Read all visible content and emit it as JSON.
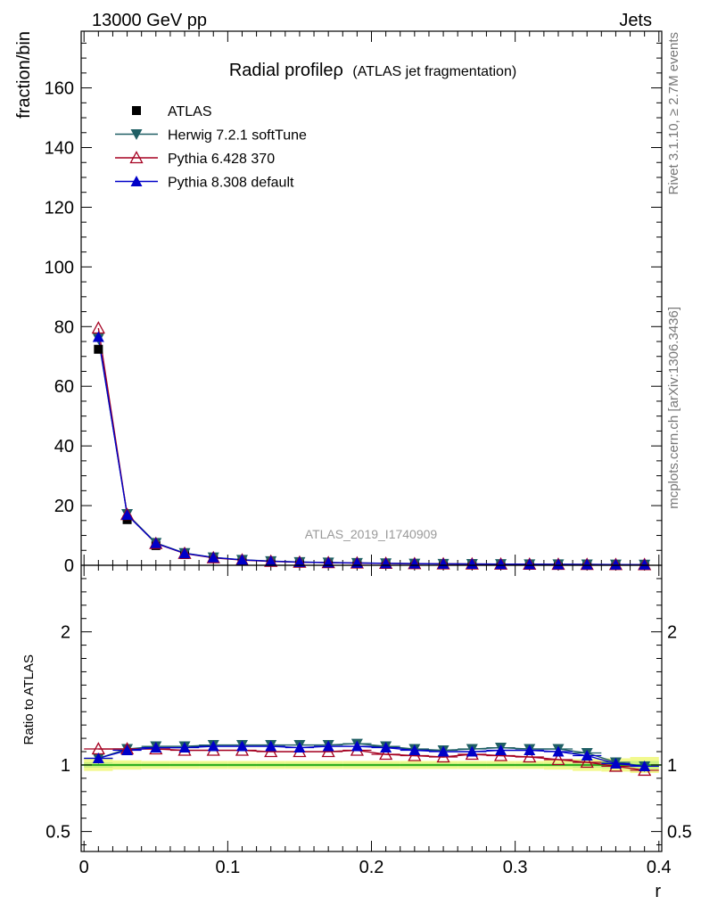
{
  "header": {
    "left": "13000 GeV pp",
    "right": "Jets"
  },
  "side_labels": {
    "rivet": "Rivet 3.1.10, ≥ 2.7M events",
    "mcplots": "mcplots.cern.ch [arXiv:1306.3436]"
  },
  "watermark": "ATLAS_2019_I1740909",
  "chart_data": {
    "type": "scatter",
    "title": "Radial profileρ",
    "subtitle": "(ATLAS jet fragmentation)",
    "xlabel": "r",
    "ylabel": "fraction/bin",
    "ratio_ylabel": "Ratio to ATLAS",
    "xlim": [
      -0.002,
      0.402
    ],
    "ylim": [
      0,
      179
    ],
    "ratio_ylim": [
      0.35,
      2.5
    ],
    "x_ticks": [
      "0",
      "0.1",
      "0.2",
      "0.3",
      "0.4"
    ],
    "y_ticks": [
      "0",
      "20",
      "40",
      "60",
      "80",
      "100",
      "120",
      "140",
      "160"
    ],
    "ratio_ticks": [
      "0.5",
      "1",
      "2"
    ],
    "x": [
      0.01,
      0.03,
      0.05,
      0.07,
      0.09,
      0.11,
      0.13,
      0.15,
      0.17,
      0.19,
      0.21,
      0.23,
      0.25,
      0.27,
      0.29,
      0.31,
      0.33,
      0.35,
      0.37,
      0.39
    ],
    "legend_position": "top-left",
    "series": [
      {
        "name": "ATLAS",
        "color": "#000000",
        "marker": "square",
        "values": [
          72.4,
          15.3,
          6.6,
          3.6,
          2.3,
          1.6,
          1.2,
          0.95,
          0.8,
          0.68,
          0.58,
          0.5,
          0.44,
          0.39,
          0.35,
          0.31,
          0.28,
          0.26,
          0.24,
          0.22
        ]
      },
      {
        "name": "Herwig 7.2.1 softTune",
        "color": "#1f5f64",
        "marker": "triangle-down",
        "values": [
          76.0,
          17.2,
          7.5,
          4.1,
          2.64,
          1.84,
          1.38,
          1.09,
          0.92,
          0.79,
          0.66,
          0.56,
          0.49,
          0.44,
          0.4,
          0.35,
          0.32,
          0.29,
          0.25,
          0.22
        ],
        "ratio": [
          1.05,
          1.12,
          1.14,
          1.14,
          1.15,
          1.15,
          1.15,
          1.15,
          1.15,
          1.16,
          1.14,
          1.12,
          1.11,
          1.12,
          1.13,
          1.12,
          1.12,
          1.09,
          1.02,
          0.99
        ]
      },
      {
        "name": "Pythia 6.428 370",
        "color": "#a50021",
        "marker": "triangle-up-open",
        "values": [
          79.5,
          17.0,
          7.3,
          3.95,
          2.5,
          1.75,
          1.31,
          1.03,
          0.87,
          0.75,
          0.63,
          0.53,
          0.46,
          0.42,
          0.37,
          0.33,
          0.29,
          0.26,
          0.24,
          0.21
        ],
        "ratio": [
          1.12,
          1.12,
          1.12,
          1.11,
          1.11,
          1.11,
          1.1,
          1.1,
          1.1,
          1.11,
          1.08,
          1.07,
          1.06,
          1.08,
          1.07,
          1.06,
          1.04,
          1.02,
          0.99,
          0.96
        ]
      },
      {
        "name": "Pythia 8.308 default",
        "color": "#0000c8",
        "marker": "triangle-up",
        "values": [
          76.5,
          16.9,
          7.4,
          4.0,
          2.6,
          1.82,
          1.36,
          1.07,
          0.9,
          0.77,
          0.65,
          0.55,
          0.48,
          0.43,
          0.39,
          0.34,
          0.31,
          0.28,
          0.24,
          0.22
        ],
        "ratio": [
          1.05,
          1.11,
          1.13,
          1.13,
          1.14,
          1.14,
          1.14,
          1.13,
          1.14,
          1.14,
          1.13,
          1.11,
          1.1,
          1.1,
          1.11,
          1.11,
          1.1,
          1.07,
          1.01,
          0.99
        ]
      }
    ],
    "uncertainty_bands": {
      "inner_color": "#c8f080",
      "outer_color": "#f2f98e",
      "inner": [
        0.02,
        0.015,
        0.015,
        0.015,
        0.015,
        0.015,
        0.015,
        0.015,
        0.015,
        0.015,
        0.015,
        0.015,
        0.015,
        0.015,
        0.015,
        0.015,
        0.015,
        0.02,
        0.025,
        0.03
      ],
      "outer": [
        0.045,
        0.035,
        0.03,
        0.03,
        0.03,
        0.03,
        0.03,
        0.03,
        0.03,
        0.03,
        0.03,
        0.03,
        0.03,
        0.03,
        0.03,
        0.03,
        0.035,
        0.045,
        0.05,
        0.06
      ]
    }
  }
}
